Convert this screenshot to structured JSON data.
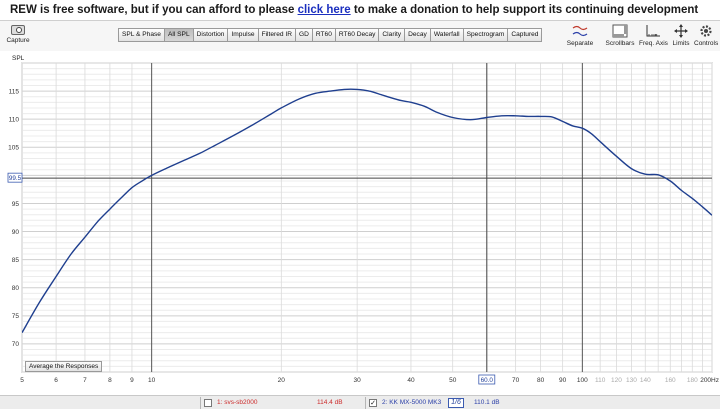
{
  "banner": {
    "prefix": "REW is free software, but if you can afford to please",
    "link": "click here",
    "suffix": "to make a donation to help support its continuing development"
  },
  "toolbar": {
    "capture_label": "Capture",
    "tabs": [
      {
        "label": "SPL & Phase"
      },
      {
        "label": "All SPL",
        "active": true
      },
      {
        "label": "Distortion"
      },
      {
        "label": "Impulse"
      },
      {
        "label": "Filtered IR"
      },
      {
        "label": "GD"
      },
      {
        "label": "RT60"
      },
      {
        "label": "RT60 Decay"
      },
      {
        "label": "Clarity"
      },
      {
        "label": "Decay"
      },
      {
        "label": "Waterfall"
      },
      {
        "label": "Spectrogram"
      },
      {
        "label": "Captured"
      }
    ],
    "right": {
      "separate": "Separate",
      "scrollbars": "Scrollbars",
      "freq_axis": "Freq. Axis",
      "limits": "Limits",
      "controls": "Controls"
    }
  },
  "plot": {
    "average_button": "Average the Responses",
    "cursor_y_label": "99.5",
    "cursor_x_label": "60.0"
  },
  "chart_data": {
    "type": "line",
    "title": "",
    "ylabel": "SPL",
    "xlabel": "",
    "x_scale": "log",
    "xlim": [
      5,
      200
    ],
    "ylim": [
      65,
      120
    ],
    "y_ticks": [
      70,
      75,
      80,
      85,
      90,
      95,
      100,
      105,
      110,
      115
    ],
    "x_tick_labels": [
      {
        "v": 5,
        "t": "5"
      },
      {
        "v": 6,
        "t": "6"
      },
      {
        "v": 7,
        "t": "7"
      },
      {
        "v": 8,
        "t": "8"
      },
      {
        "v": 9,
        "t": "9"
      },
      {
        "v": 10,
        "t": "10"
      },
      {
        "v": 20,
        "t": "20"
      },
      {
        "v": 30,
        "t": "30"
      },
      {
        "v": 40,
        "t": "40"
      },
      {
        "v": 50,
        "t": "50"
      },
      {
        "v": 70,
        "t": "70"
      },
      {
        "v": 80,
        "t": "80"
      },
      {
        "v": 90,
        "t": "90"
      },
      {
        "v": 100,
        "t": "100"
      },
      {
        "v": 110,
        "t": "110",
        "grey": true
      },
      {
        "v": 120,
        "t": "120",
        "grey": true
      },
      {
        "v": 130,
        "t": "130",
        "grey": true
      },
      {
        "v": 140,
        "t": "140",
        "grey": true
      },
      {
        "v": 160,
        "t": "160",
        "grey": true
      },
      {
        "v": 180,
        "t": "180",
        "grey": true
      },
      {
        "v": 200,
        "t": "200Hz"
      }
    ],
    "cursor": {
      "x": 60,
      "y": 99.5
    },
    "grid": true,
    "series": [
      {
        "color": "#1f3f8f",
        "x": [
          5,
          5.5,
          6,
          6.5,
          7,
          7.5,
          8,
          8.5,
          9,
          9.5,
          10,
          11,
          12,
          13,
          14,
          15,
          17,
          19,
          20,
          22,
          24,
          26,
          28,
          30,
          32,
          34,
          36,
          38,
          40,
          43,
          46,
          50,
          55,
          60,
          65,
          70,
          75,
          80,
          85,
          90,
          95,
          100,
          105,
          110,
          120,
          130,
          140,
          150,
          160,
          170,
          180,
          190,
          200
        ],
        "y": [
          72.0,
          77.5,
          82.0,
          86.0,
          89.0,
          91.8,
          94.0,
          96.0,
          97.8,
          99.0,
          100.0,
          101.5,
          102.8,
          104.0,
          105.3,
          106.5,
          108.8,
          111.0,
          112.0,
          113.6,
          114.6,
          115.0,
          115.3,
          115.3,
          115.0,
          114.4,
          113.8,
          113.3,
          113.0,
          112.3,
          111.2,
          110.3,
          109.9,
          110.3,
          110.6,
          110.6,
          110.5,
          110.5,
          110.4,
          109.6,
          108.8,
          108.4,
          107.4,
          106.0,
          103.4,
          101.2,
          100.2,
          100.1,
          99.0,
          97.3,
          95.9,
          94.4,
          92.9
        ]
      }
    ]
  },
  "legend": [
    {
      "checked": false,
      "name": "1: svs-sb2000",
      "value": "114.4 dB",
      "color": "#cc2b2b"
    },
    {
      "checked": true,
      "name": "2: KK MX-5000 MK3",
      "value": "110.1 dB",
      "color": "#2b3fa8"
    }
  ],
  "legend_smooth_label": "1/6"
}
